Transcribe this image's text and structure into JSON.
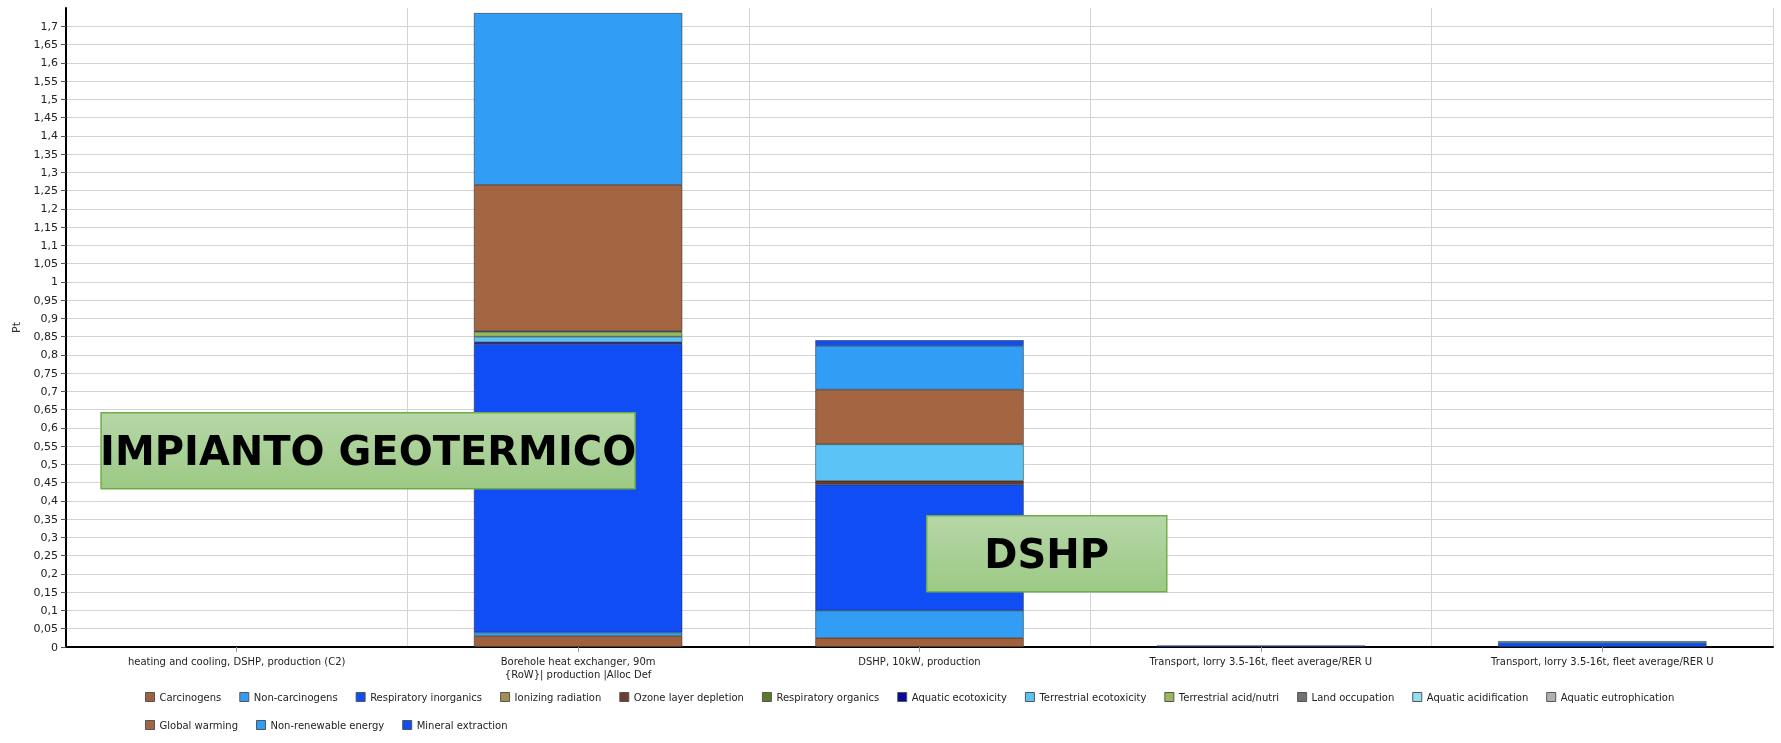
{
  "chart_data": {
    "type": "bar",
    "stacked": true,
    "ylabel": "Pt",
    "categories": [
      "heating and cooling, DSHP, production (C2)",
      "Borehole heat exchanger, 90m\n{RoW}| production |Alloc Def",
      "DSHP, 10kW, production",
      "Transport, lorry 3.5-16t, fleet average/RER U",
      "Transport, lorry 3.5-16t, fleet average/RER U"
    ],
    "series": [
      {
        "name": "Carcinogens",
        "color": "#a0613f",
        "values": [
          null,
          0.03,
          0.025,
          null,
          null
        ]
      },
      {
        "name": "Non-carcinogens",
        "color": "#319df5",
        "values": [
          null,
          0.01,
          0.075,
          null,
          null
        ]
      },
      {
        "name": "Respiratory inorganics",
        "color": "#114df5",
        "values": [
          null,
          0.79,
          0.345,
          0.004,
          0.01
        ]
      },
      {
        "name": "Ionizing radiation",
        "color": "#a09050",
        "values": [
          null,
          null,
          null,
          null,
          null
        ]
      },
      {
        "name": "Ozone layer depletion",
        "color": "#6b3f2a",
        "values": [
          null,
          null,
          0.01,
          null,
          null
        ]
      },
      {
        "name": "Respiratory organics",
        "color": "#5a7a2a",
        "values": [
          null,
          null,
          null,
          null,
          null
        ]
      },
      {
        "name": "Aquatic ecotoxicity",
        "color": "#0a0a9a",
        "values": [
          null,
          0.005,
          null,
          null,
          null
        ]
      },
      {
        "name": "Terrestrial ecotoxicity",
        "color": "#5bc3f5",
        "values": [
          null,
          0.015,
          0.1,
          null,
          null
        ]
      },
      {
        "name": "Terrestrial acid/nutri",
        "color": "#9ab85a",
        "values": [
          null,
          0.013,
          null,
          null,
          null
        ]
      },
      {
        "name": "Land occupation",
        "color": "#707070",
        "values": [
          null,
          0.003,
          null,
          null,
          null
        ]
      },
      {
        "name": "Aquatic acidification",
        "color": "#90e0f0",
        "values": [
          null,
          null,
          null,
          null,
          null
        ]
      },
      {
        "name": "Aquatic eutrophication",
        "color": "#b0b0b0",
        "values": [
          null,
          null,
          null,
          null,
          null
        ]
      },
      {
        "name": "Global warming",
        "color": "#a36542",
        "values": [
          null,
          0.4,
          0.15,
          null,
          null
        ]
      },
      {
        "name": "Non-renewable energy",
        "color": "#319df5",
        "values": [
          null,
          0.47,
          0.12,
          null,
          0.006
        ]
      },
      {
        "name": "Mineral extraction",
        "color": "#114df5",
        "values": [
          null,
          null,
          0.015,
          null,
          null
        ]
      }
    ],
    "ylim": [
      0,
      1.75
    ],
    "yticks": [
      0,
      {
        "value": 0.05,
        "label": "0,05"
      },
      {
        "value": 0.1,
        "label": "0,1"
      },
      {
        "value": 0.15,
        "label": "0,15"
      },
      {
        "value": 0.2,
        "label": "0,2"
      },
      {
        "value": 0.25,
        "label": "0,25"
      },
      {
        "value": 0.3,
        "label": "0,3"
      },
      {
        "value": 0.35,
        "label": "0,35"
      },
      {
        "value": 0.4,
        "label": "0,4"
      },
      {
        "value": 0.45,
        "label": "0,45"
      },
      {
        "value": 0.5,
        "label": "0,5"
      },
      {
        "value": 0.55,
        "label": "0,55"
      },
      {
        "value": 0.6,
        "label": "0,6"
      },
      {
        "value": 0.65,
        "label": "0,65"
      },
      {
        "value": 0.7,
        "label": "0,7"
      },
      {
        "value": 0.75,
        "label": "0,75"
      },
      {
        "value": 0.8,
        "label": "0,8"
      },
      {
        "value": 0.85,
        "label": "0,85"
      },
      {
        "value": 0.9,
        "label": "0,9"
      },
      {
        "value": 0.95,
        "label": "0,95"
      },
      1,
      {
        "value": 1.05,
        "label": "1,05"
      },
      {
        "value": 1.1,
        "label": "1,1"
      },
      {
        "value": 1.15,
        "label": "1,15"
      },
      {
        "value": 1.2,
        "label": "1,2"
      },
      {
        "value": 1.25,
        "label": "1,25"
      },
      {
        "value": 1.3,
        "label": "1,3"
      },
      {
        "value": 1.35,
        "label": "1,35"
      },
      {
        "value": 1.4,
        "label": "1,4"
      },
      {
        "value": 1.45,
        "label": "1,45"
      },
      {
        "value": 1.5,
        "label": "1,5"
      },
      {
        "value": 1.55,
        "label": "1,55"
      },
      {
        "value": 1.6,
        "label": "1,6"
      },
      {
        "value": 1.65,
        "label": "1,65"
      },
      {
        "value": 1.7,
        "label": "1,7"
      }
    ],
    "grid": true,
    "legend": "bottom",
    "annotations": [
      "IMPIANTO GEOTERMICO",
      "DSHP"
    ]
  }
}
